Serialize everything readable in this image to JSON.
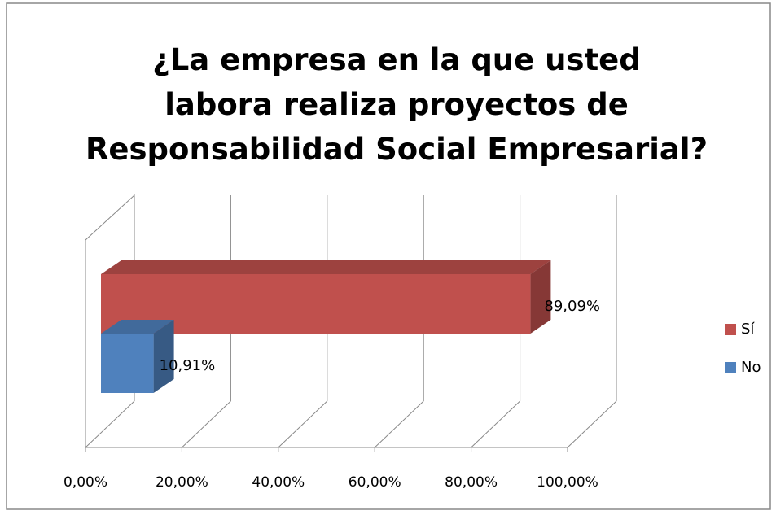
{
  "chart_data": {
    "type": "bar",
    "orientation": "horizontal",
    "three_d": true,
    "title": "¿La empresa en la que usted labora realiza proyectos de Responsabilidad Social Empresarial?",
    "series": [
      {
        "name": "Sí",
        "color": "#c0504d",
        "values": [
          89.09
        ],
        "value_labels": [
          "89,09%"
        ]
      },
      {
        "name": "No",
        "color": "#4f81bd",
        "values": [
          10.91
        ],
        "value_labels": [
          "10,91%"
        ]
      }
    ],
    "xlim": [
      0,
      100
    ],
    "xticks": [
      {
        "value": 0,
        "label": "0,00%"
      },
      {
        "value": 20,
        "label": "20,00%"
      },
      {
        "value": 40,
        "label": "40,00%"
      },
      {
        "value": 60,
        "label": "60,00%"
      },
      {
        "value": 80,
        "label": "80,00%"
      },
      {
        "value": 100,
        "label": "100,00%"
      }
    ],
    "grid": true,
    "legend": "right"
  }
}
